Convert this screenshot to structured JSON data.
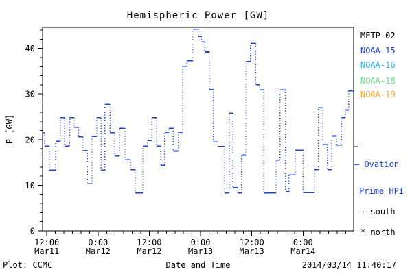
{
  "window": {
    "background": "#ffffff"
  },
  "chart_data": {
    "type": "line",
    "style": "step-plot, solid horizontal steps with dotted vertical connectors",
    "title": "Hemispheric Power [GW]",
    "xlabel": "Date and Time",
    "ylabel": "P [GW]",
    "ylim": [
      0,
      44.6
    ],
    "y_major_ticks": [
      0,
      10,
      20,
      30,
      40
    ],
    "y_minor_step": 2,
    "x_hours_range": [
      0,
      72.85
    ],
    "x_minor_step": 2,
    "x_major_ticks": [
      {
        "h": 1,
        "time": "12:00",
        "date": "Mar11"
      },
      {
        "h": 13,
        "time": "0:00",
        "date": "Mar12"
      },
      {
        "h": 25,
        "time": "12:00",
        "date": "Mar12"
      },
      {
        "h": 37,
        "time": "0:00",
        "date": "Mar13"
      },
      {
        "h": 49,
        "time": "12:00",
        "date": "Mar13"
      },
      {
        "h": 61,
        "time": "0:00",
        "date": "Mar14"
      }
    ],
    "grid": false,
    "series": [
      {
        "name": "Ovation Prime HPI (north)",
        "color": "#1e43d6",
        "units": "GW",
        "points": [
          [
            0.0,
            21.5
          ],
          [
            0.5,
            18.6
          ],
          [
            1.6,
            13.3
          ],
          [
            3.1,
            19.6
          ],
          [
            4.2,
            24.8
          ],
          [
            5.2,
            18.6
          ],
          [
            6.3,
            24.8
          ],
          [
            7.4,
            22.7
          ],
          [
            8.4,
            20.6
          ],
          [
            9.5,
            17.6
          ],
          [
            10.5,
            10.3
          ],
          [
            11.6,
            20.7
          ],
          [
            12.7,
            24.8
          ],
          [
            13.7,
            13.3
          ],
          [
            14.6,
            27.7
          ],
          [
            15.8,
            21.5
          ],
          [
            16.9,
            16.4
          ],
          [
            18.0,
            22.5
          ],
          [
            19.3,
            15.6
          ],
          [
            20.6,
            13.4
          ],
          [
            21.7,
            8.3
          ],
          [
            23.5,
            18.6
          ],
          [
            24.6,
            19.8
          ],
          [
            25.6,
            24.8
          ],
          [
            26.7,
            18.6
          ],
          [
            27.7,
            14.4
          ],
          [
            28.6,
            21.6
          ],
          [
            29.6,
            22.5
          ],
          [
            30.6,
            17.5
          ],
          [
            31.8,
            21.6
          ],
          [
            32.8,
            36.1
          ],
          [
            33.8,
            37.3
          ],
          [
            35.2,
            44.2
          ],
          [
            36.5,
            42.6
          ],
          [
            37.2,
            41.4
          ],
          [
            38.0,
            39.2
          ],
          [
            39.1,
            31.0
          ],
          [
            40.0,
            19.5
          ],
          [
            41.0,
            18.5
          ],
          [
            42.6,
            8.3
          ],
          [
            43.7,
            25.8
          ],
          [
            44.6,
            9.5
          ],
          [
            45.7,
            8.3
          ],
          [
            46.6,
            16.6
          ],
          [
            47.6,
            37.1
          ],
          [
            48.7,
            41.1
          ],
          [
            49.9,
            32.0
          ],
          [
            50.8,
            30.9
          ],
          [
            51.8,
            8.3
          ],
          [
            54.7,
            15.5
          ],
          [
            55.6,
            30.9
          ],
          [
            56.9,
            8.6
          ],
          [
            57.7,
            12.3
          ],
          [
            59.2,
            17.7
          ],
          [
            61.0,
            8.4
          ],
          [
            63.7,
            13.4
          ],
          [
            64.6,
            27.0
          ],
          [
            65.6,
            18.9
          ],
          [
            66.7,
            13.4
          ],
          [
            67.7,
            20.8
          ],
          [
            68.8,
            18.8
          ],
          [
            70.0,
            24.8
          ],
          [
            70.9,
            26.5
          ],
          [
            71.7,
            30.7
          ]
        ]
      }
    ],
    "legend": [
      {
        "label": "METP-02",
        "color": "#000000"
      },
      {
        "label": "NOAA-15",
        "color": "#1e43d6"
      },
      {
        "label": "NOAA-16",
        "color": "#2fb3ea"
      },
      {
        "label": "NOAA-18",
        "color": "#6cdd8c"
      },
      {
        "label": "NOAA-19",
        "color": "#faa22b"
      }
    ],
    "annotations": {
      "line_legend_l1": "— Ovation",
      "line_legend_l2": "Prime HPI",
      "line_legend_color": "#1e43d6",
      "south_marker": "+ south",
      "north_marker": "* north"
    }
  },
  "footer": {
    "left_label": "Plot: CCMC",
    "timestamp": "2014/03/14 11:40:17"
  }
}
